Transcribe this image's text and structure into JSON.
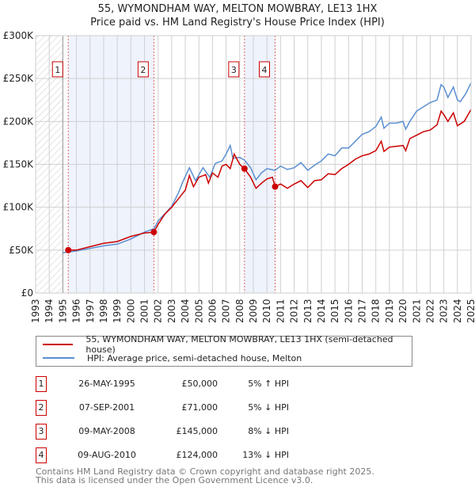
{
  "title": "55, WYMONDHAM WAY, MELTON MOWBRAY, LE13 1HX",
  "subtitle": "Price paid vs. HM Land Registry's House Price Index (HPI)",
  "chart_data": {
    "type": "line",
    "ylabel": "",
    "xlabel": "",
    "xlim": [
      1993,
      2025
    ],
    "ylim": [
      0,
      300000
    ],
    "ytick_labels": [
      "£0",
      "£50K",
      "£100K",
      "£150K",
      "£200K",
      "£250K",
      "£300K"
    ],
    "yticks": [
      0,
      50000,
      100000,
      150000,
      200000,
      250000,
      300000
    ],
    "xticks": [
      1993,
      1994,
      1995,
      1996,
      1997,
      1998,
      1999,
      2000,
      2001,
      2002,
      2003,
      2004,
      2005,
      2006,
      2007,
      2008,
      2009,
      2010,
      2011,
      2012,
      2013,
      2014,
      2015,
      2016,
      2017,
      2018,
      2019,
      2020,
      2021,
      2022,
      2023,
      2024,
      2025
    ],
    "grid": true,
    "series": [
      {
        "name": "55, WYMONDHAM WAY, MELTON MOWBRAY, LE13 1HX (semi-detached house)",
        "color": "#cc0000",
        "x": [
          1995.4,
          1996,
          1997,
          1998,
          1999,
          2000,
          2001,
          2001.7,
          2002,
          2002.5,
          2003,
          2003.5,
          2004,
          2004.3,
          2004.6,
          2005,
          2005.5,
          2005.7,
          2006,
          2006.4,
          2006.7,
          2007,
          2007.3,
          2007.6,
          2008,
          2008.35,
          2008.8,
          2009.2,
          2009.6,
          2010,
          2010.4,
          2010.6,
          2011,
          2011.5,
          2012,
          2012.5,
          2013,
          2013.5,
          2014,
          2014.5,
          2015,
          2015.5,
          2016,
          2016.5,
          2017,
          2017.5,
          2018,
          2018.4,
          2018.6,
          2019,
          2019.5,
          2020,
          2020.2,
          2020.5,
          2021,
          2021.5,
          2022,
          2022.5,
          2022.8,
          2023,
          2023.3,
          2023.7,
          2024,
          2024.5,
          2025
        ],
        "y": [
          50000,
          50000,
          54000,
          58000,
          60000,
          66000,
          70000,
          71000,
          80000,
          92000,
          100000,
          110000,
          120000,
          137000,
          124000,
          135000,
          138000,
          128000,
          140000,
          135000,
          148000,
          150000,
          145000,
          162000,
          150000,
          145000,
          135000,
          122000,
          128000,
          133000,
          135000,
          124000,
          127000,
          122000,
          127000,
          131000,
          123000,
          131000,
          132000,
          139000,
          138000,
          145000,
          150000,
          156000,
          160000,
          162000,
          166000,
          177000,
          165000,
          170000,
          171000,
          172000,
          166000,
          180000,
          184000,
          188000,
          190000,
          196000,
          212000,
          208000,
          200000,
          210000,
          195000,
          200000,
          214000
        ]
      },
      {
        "name": "HPI: Average price, semi-detached house, Melton",
        "color": "#5b8fd0",
        "x": [
          1995,
          1996,
          1997,
          1998,
          1999,
          2000,
          2001,
          2001.7,
          2002,
          2003,
          2003.5,
          2003.8,
          2004.3,
          2004.75,
          2005.3,
          2005.8,
          2006.2,
          2006.7,
          2007,
          2007.3,
          2007.5,
          2008,
          2008.35,
          2008.8,
          2009.2,
          2009.6,
          2010,
          2010.6,
          2011,
          2011.5,
          2012,
          2012.5,
          2013,
          2013.5,
          2014,
          2014.5,
          2015,
          2015.5,
          2016,
          2016.5,
          2017,
          2017.5,
          2018,
          2018.4,
          2018.6,
          2019,
          2019.5,
          2020,
          2020.2,
          2020.5,
          2021,
          2021.5,
          2022,
          2022.5,
          2022.8,
          2023,
          2023.3,
          2023.7,
          2024,
          2024.2,
          2024.6,
          2025
        ],
        "y": [
          47000,
          49000,
          52000,
          55000,
          57000,
          63000,
          71000,
          75000,
          84000,
          101000,
          117000,
          129000,
          146000,
          131000,
          146000,
          135000,
          151000,
          154000,
          162000,
          172000,
          157000,
          158000,
          155000,
          146000,
          132000,
          140000,
          145000,
          143000,
          148000,
          144000,
          146000,
          152000,
          143000,
          149000,
          154000,
          162000,
          160000,
          169000,
          169000,
          177000,
          185000,
          188000,
          194000,
          205000,
          192000,
          198000,
          198000,
          200000,
          191000,
          200000,
          212000,
          217000,
          222000,
          225000,
          243000,
          240000,
          228000,
          240000,
          225000,
          223000,
          232000,
          245000
        ]
      }
    ],
    "sales": [
      {
        "label": "1",
        "x": 2001.7,
        "marker_x": 1995.4,
        "y": 50000
      },
      {
        "label": "2",
        "marker_x": 2001.69,
        "y": 71000
      },
      {
        "label": "3",
        "marker_x": 2008.35,
        "y": 145000
      },
      {
        "label": "4",
        "marker_x": 2010.6,
        "y": 124000
      }
    ],
    "shaded_ranges": [
      [
        1995.4,
        2001.69
      ],
      [
        2008.35,
        2010.6
      ]
    ],
    "hatched_range": [
      1993,
      1995
    ]
  },
  "legend": {
    "red": "55, WYMONDHAM WAY, MELTON MOWBRAY, LE13 1HX (semi-detached house)",
    "blue": "HPI: Average price, semi-detached house, Melton"
  },
  "table": [
    {
      "num": "1",
      "date": "26-MAY-1995",
      "price": "£50,000",
      "hpi": "5% ↑ HPI"
    },
    {
      "num": "2",
      "date": "07-SEP-2001",
      "price": "£71,000",
      "hpi": "5% ↓ HPI"
    },
    {
      "num": "3",
      "date": "09-MAY-2008",
      "price": "£145,000",
      "hpi": "8% ↓ HPI"
    },
    {
      "num": "4",
      "date": "09-AUG-2010",
      "price": "£124,000",
      "hpi": "13% ↓ HPI"
    }
  ],
  "footer": [
    "Contains HM Land Registry data © Crown copyright and database right 2025.",
    "This data is licensed under the Open Government Licence v3.0."
  ]
}
